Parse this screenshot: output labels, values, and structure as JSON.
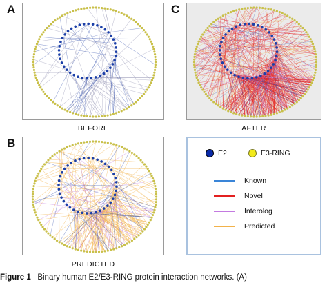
{
  "panels": [
    {
      "id": "A",
      "letter": "A",
      "caption": "BEFORE"
    },
    {
      "id": "B",
      "letter": "B",
      "caption": "PREDICTED"
    },
    {
      "id": "C",
      "letter": "C",
      "caption": "AFTER"
    }
  ],
  "legend": {
    "nodes": [
      {
        "label": "E2",
        "fill": "#0a2aa8",
        "stroke": "#000000"
      },
      {
        "label": "E3-RING",
        "fill": "#f2ea1a",
        "stroke": "#7a7a20"
      }
    ],
    "edges": [
      {
        "label": "Known",
        "color": "#3a85d8"
      },
      {
        "label": "Novel",
        "color": "#e32020"
      },
      {
        "label": "Interolog",
        "color": "#c37ae0"
      },
      {
        "label": "Predicted",
        "color": "#f2b24a"
      }
    ]
  },
  "colors": {
    "e2_node": "#1b3fa8",
    "e3_node": "#c9c04a",
    "known": "#3a55b0",
    "novel": "#e32020",
    "interolog": "#c37ae0",
    "predicted": "#f2b24a",
    "gray_edge": "#9a9ab8",
    "panel_c_bg": "#ebebeb"
  },
  "caption": {
    "label": "Figure 1",
    "text": "Binary human E2/E3-RING protein interaction networks. (A)"
  }
}
